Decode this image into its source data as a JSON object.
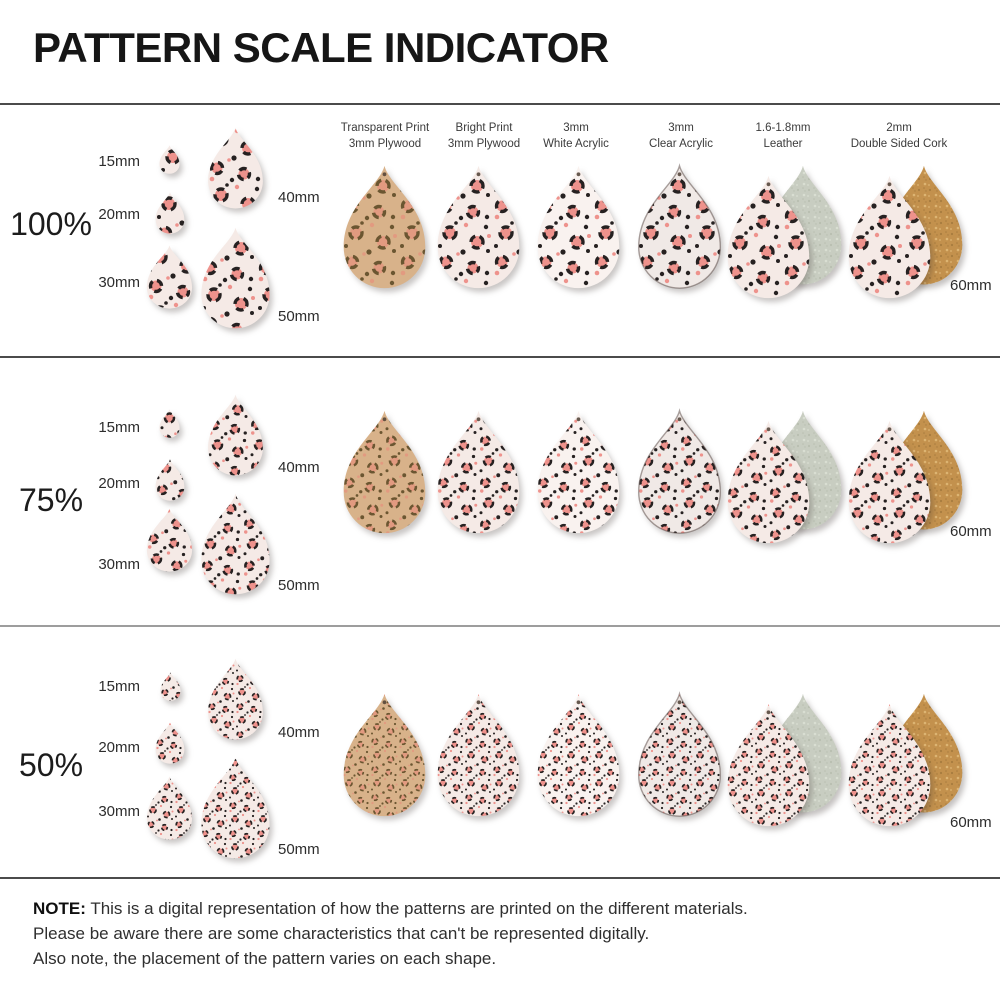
{
  "title": "PATTERN SCALE INDICATOR",
  "materials": [
    {
      "line1": "Transparent Print",
      "line2": "3mm Plywood"
    },
    {
      "line1": "Bright Print",
      "line2": "3mm Plywood"
    },
    {
      "line1": "3mm",
      "line2": "White Acrylic"
    },
    {
      "line1": "3mm",
      "line2": "Clear Acrylic"
    },
    {
      "line1": "1.6-1.8mm",
      "line2": "Leather"
    },
    {
      "line1": "2mm",
      "line2": "Double Sided Cork"
    }
  ],
  "rows": [
    {
      "scale_label": "100%",
      "sizes": [
        "15mm",
        "20mm",
        "30mm",
        "40mm",
        "50mm"
      ],
      "large_size_label": "60mm"
    },
    {
      "scale_label": "75%",
      "sizes": [
        "15mm",
        "20mm",
        "30mm",
        "40mm",
        "50mm"
      ],
      "large_size_label": "60mm"
    },
    {
      "scale_label": "50%",
      "sizes": [
        "15mm",
        "20mm",
        "30mm",
        "40mm",
        "50mm"
      ],
      "large_size_label": "60mm"
    }
  ],
  "note": {
    "label": "NOTE:",
    "line1": "This is a digital representation of how the patterns are printed on the different materials.",
    "line2": "Please be aware there are some characteristics that can't be represented digitally.",
    "line3": "Also note, the placement of the pattern varies on each shape."
  },
  "colors": {
    "print_bg": "#f5eae6",
    "print_spot": "#262121",
    "print_accent": "#ee928c",
    "plywood_bg": "#d8b28a",
    "plywood_spot": "#6b5631",
    "plywood_accent": "#e29a80",
    "white_acrylic_bg": "#f9f2ef",
    "clear_acrylic_bg": "#f0e9e6",
    "leather_back": "#c8cdc1",
    "cork_back": "#c3914d",
    "divider_dark": "#4b4b4b",
    "divider_light": "#9d9d9d",
    "text": "#2f2f2f"
  }
}
